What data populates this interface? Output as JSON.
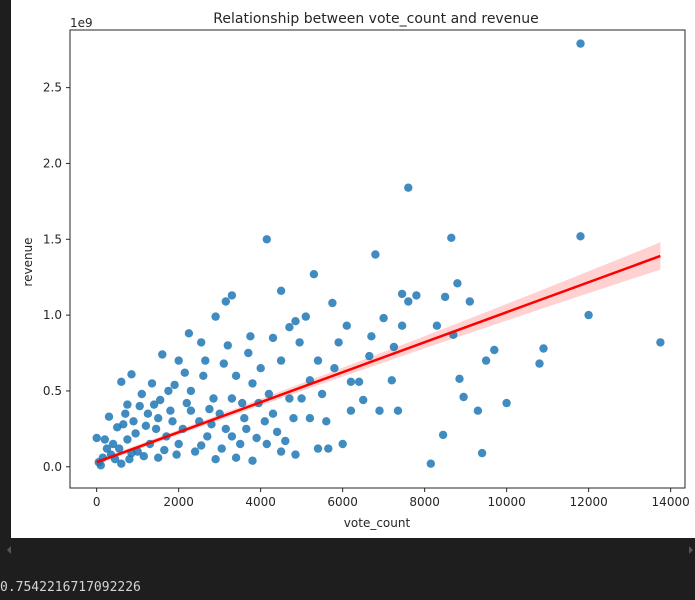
{
  "output": {
    "printed_value": "0.7542216717092226"
  },
  "colors": {
    "background": "#1e1e1e",
    "figure_bg": "#ffffff",
    "points": "#1f77b4",
    "regression_line": "#ff0000",
    "confidence_band": "#ffb3b3",
    "text": "#262626"
  },
  "chart_data": {
    "type": "scatter",
    "title": "Relationship between vote_count and revenue",
    "xlabel": "vote_count",
    "ylabel": "revenue",
    "y_offset_label": "1e9",
    "xlim": [
      -650,
      14350
    ],
    "ylim": [
      -0.14,
      2.88
    ],
    "x_ticks": [
      0,
      2000,
      4000,
      6000,
      8000,
      10000,
      12000,
      14000
    ],
    "x_tick_labels": [
      "0",
      "2000",
      "4000",
      "6000",
      "8000",
      "10000",
      "12000",
      "14000"
    ],
    "y_ticks": [
      0.0,
      0.5,
      1.0,
      1.5,
      2.0,
      2.5
    ],
    "y_tick_labels": [
      "0.0",
      "0.5",
      "1.0",
      "1.5",
      "2.0",
      "2.5"
    ],
    "grid": false,
    "regression": {
      "x": [
        0,
        13750
      ],
      "y": [
        0.03,
        1.39
      ],
      "band_halfwidth_at_start": 0.015,
      "band_halfwidth_at_end": 0.09
    },
    "points": [
      [
        11800,
        2.79
      ],
      [
        7600,
        1.84
      ],
      [
        11800,
        1.52
      ],
      [
        8650,
        1.51
      ],
      [
        4150,
        1.5
      ],
      [
        6800,
        1.4
      ],
      [
        12000,
        1.0
      ],
      [
        13750,
        0.82
      ],
      [
        10900,
        0.78
      ],
      [
        10800,
        0.68
      ],
      [
        9100,
        1.09
      ],
      [
        8800,
        1.21
      ],
      [
        8500,
        1.12
      ],
      [
        7800,
        1.13
      ],
      [
        7450,
        1.14
      ],
      [
        7600,
        1.09
      ],
      [
        8700,
        0.87
      ],
      [
        9500,
        0.7
      ],
      [
        9700,
        0.77
      ],
      [
        8300,
        0.93
      ],
      [
        7250,
        0.79
      ],
      [
        6700,
        0.86
      ],
      [
        7000,
        0.98
      ],
      [
        7450,
        0.93
      ],
      [
        8450,
        0.21
      ],
      [
        8150,
        0.02
      ],
      [
        9400,
        0.09
      ],
      [
        9300,
        0.37
      ],
      [
        10000,
        0.42
      ],
      [
        8850,
        0.58
      ],
      [
        8950,
        0.46
      ],
      [
        7350,
        0.37
      ],
      [
        6900,
        0.37
      ],
      [
        6500,
        0.44
      ],
      [
        6200,
        0.56
      ],
      [
        5600,
        0.3
      ],
      [
        5400,
        0.12
      ],
      [
        5650,
        0.12
      ],
      [
        6200,
        0.37
      ],
      [
        7200,
        0.57
      ],
      [
        5300,
        1.27
      ],
      [
        5750,
        1.08
      ],
      [
        5100,
        0.99
      ],
      [
        4850,
        0.96
      ],
      [
        4500,
        1.16
      ],
      [
        4300,
        0.85
      ],
      [
        4700,
        0.92
      ],
      [
        4500,
        0.7
      ],
      [
        3750,
        0.86
      ],
      [
        3150,
        1.09
      ],
      [
        3300,
        1.13
      ],
      [
        2900,
        0.99
      ],
      [
        2250,
        0.88
      ],
      [
        2550,
        0.82
      ],
      [
        6100,
        0.93
      ],
      [
        5900,
        0.82
      ],
      [
        6650,
        0.73
      ],
      [
        6400,
        0.56
      ],
      [
        5800,
        0.65
      ],
      [
        5200,
        0.57
      ],
      [
        4200,
        0.48
      ],
      [
        3800,
        0.55
      ],
      [
        3400,
        0.6
      ],
      [
        3100,
        0.68
      ],
      [
        2850,
        0.45
      ],
      [
        4100,
        0.3
      ],
      [
        3600,
        0.32
      ],
      [
        2700,
        0.2
      ],
      [
        2300,
        0.37
      ],
      [
        2600,
        0.6
      ],
      [
        2000,
        0.7
      ],
      [
        1600,
        0.74
      ],
      [
        1900,
        0.54
      ],
      [
        1350,
        0.55
      ],
      [
        1100,
        0.48
      ],
      [
        850,
        0.61
      ],
      [
        600,
        0.56
      ],
      [
        1400,
        0.41
      ],
      [
        300,
        0.33
      ],
      [
        400,
        0.15
      ],
      [
        200,
        0.18
      ],
      [
        0,
        0.19
      ],
      [
        50,
        0.03
      ],
      [
        150,
        0.06
      ],
      [
        100,
        0.01
      ],
      [
        350,
        0.08
      ],
      [
        500,
        0.26
      ],
      [
        700,
        0.35
      ],
      [
        900,
        0.3
      ],
      [
        1200,
        0.27
      ],
      [
        1500,
        0.32
      ],
      [
        1800,
        0.37
      ],
      [
        2100,
        0.25
      ],
      [
        2500,
        0.3
      ],
      [
        2800,
        0.28
      ],
      [
        3000,
        0.35
      ],
      [
        3300,
        0.2
      ],
      [
        3500,
        0.15
      ],
      [
        3900,
        0.19
      ],
      [
        4400,
        0.23
      ],
      [
        4600,
        0.17
      ],
      [
        4800,
        0.32
      ],
      [
        5000,
        0.45
      ],
      [
        5500,
        0.48
      ],
      [
        4000,
        0.65
      ],
      [
        3700,
        0.75
      ],
      [
        3200,
        0.8
      ],
      [
        2300,
        0.5
      ],
      [
        1700,
        0.2
      ],
      [
        2000,
        0.15
      ],
      [
        2400,
        0.1
      ],
      [
        2900,
        0.05
      ],
      [
        3400,
        0.06
      ],
      [
        3800,
        0.04
      ],
      [
        4500,
        0.1
      ],
      [
        1000,
        0.1
      ],
      [
        1300,
        0.15
      ],
      [
        600,
        0.02
      ],
      [
        800,
        0.05
      ],
      [
        1500,
        0.06
      ],
      [
        4700,
        0.45
      ],
      [
        5400,
        0.7
      ],
      [
        6000,
        0.15
      ],
      [
        4950,
        0.82
      ],
      [
        3950,
        0.42
      ],
      [
        3300,
        0.45
      ],
      [
        2650,
        0.7
      ],
      [
        2150,
        0.62
      ],
      [
        1750,
        0.5
      ],
      [
        1250,
        0.35
      ],
      [
        950,
        0.22
      ],
      [
        750,
        0.18
      ],
      [
        450,
        0.05
      ],
      [
        250,
        0.12
      ],
      [
        650,
        0.28
      ],
      [
        1050,
        0.4
      ],
      [
        1450,
        0.25
      ],
      [
        1850,
        0.3
      ],
      [
        2200,
        0.42
      ],
      [
        2750,
        0.38
      ],
      [
        3150,
        0.25
      ],
      [
        3550,
        0.42
      ],
      [
        4300,
        0.35
      ],
      [
        5200,
        0.32
      ],
      [
        550,
        0.12
      ],
      [
        850,
        0.09
      ],
      [
        1150,
        0.07
      ],
      [
        1650,
        0.11
      ],
      [
        1950,
        0.08
      ],
      [
        2550,
        0.14
      ],
      [
        3050,
        0.12
      ],
      [
        3650,
        0.25
      ],
      [
        4150,
        0.15
      ],
      [
        4850,
        0.08
      ],
      [
        750,
        0.41
      ],
      [
        1550,
        0.44
      ]
    ]
  }
}
